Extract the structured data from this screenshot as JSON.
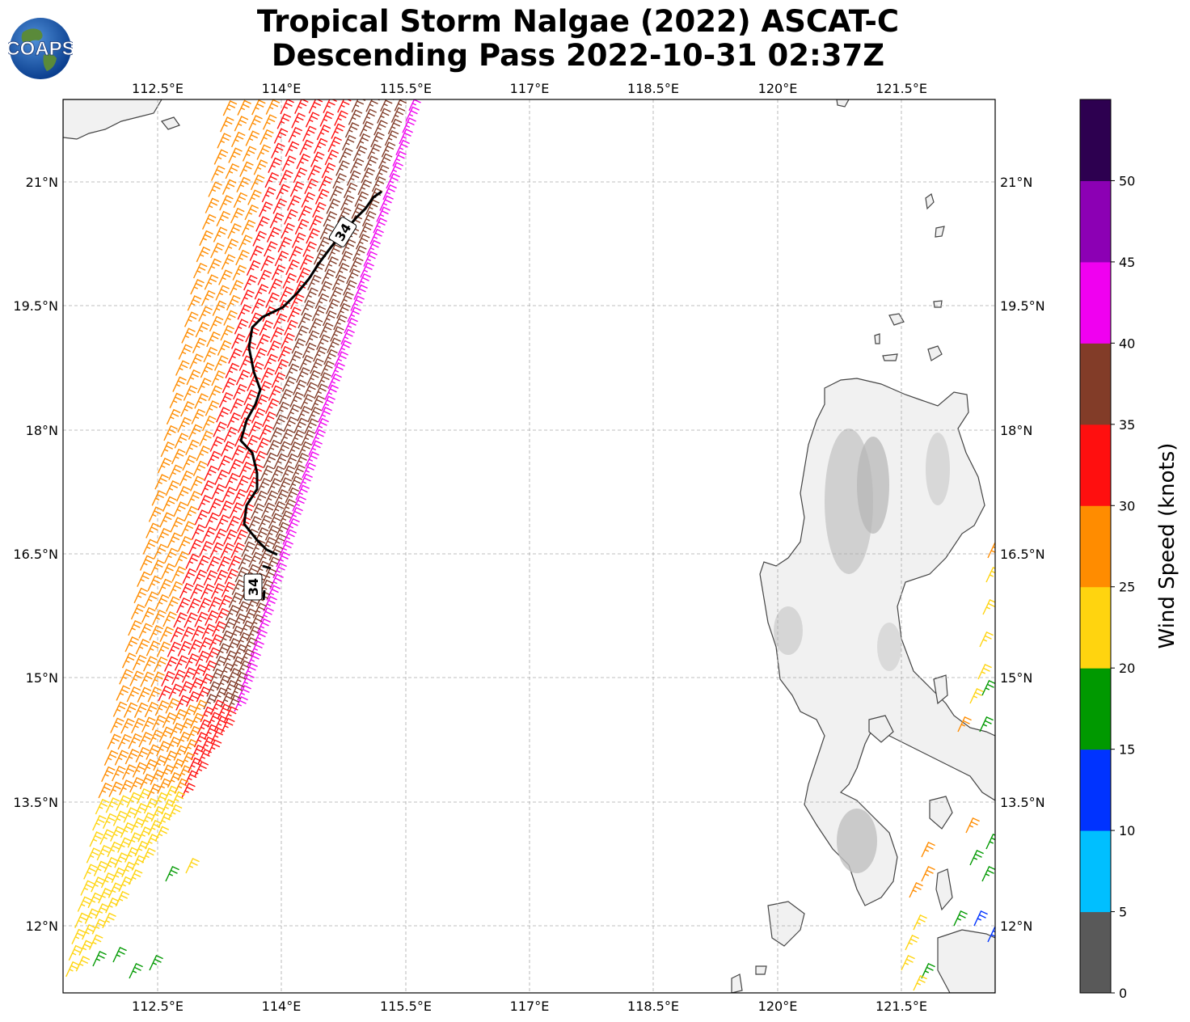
{
  "header": {
    "title_line1": "Tropical Storm Nalgae (2022) ASCAT-C",
    "title_line2": "Descending Pass 2022-10-31 02:37Z"
  },
  "logo": {
    "text": "COAPS",
    "icon": "globe-icon"
  },
  "map": {
    "lon_range": [
      111.0,
      122.3
    ],
    "lat_range": [
      11.2,
      22.0
    ],
    "lon_ticks": [
      "112.5°E",
      "114°E",
      "115.5°E",
      "117°E",
      "118.5°E",
      "120°E",
      "121.5°E"
    ],
    "lat_ticks": [
      "21°N",
      "19.5°N",
      "18°N",
      "16.5°N",
      "15°N",
      "13.5°N",
      "12°N"
    ],
    "contour_label": "34",
    "contour_label_2": "34",
    "land_color": "#f2f2f2",
    "coast_color": "#444444"
  },
  "colorbar": {
    "label": "Wind Speed (knots)",
    "ticks": [
      "0",
      "5",
      "10",
      "15",
      "20",
      "25",
      "30",
      "35",
      "40",
      "45",
      "50"
    ],
    "colors": [
      "#595959",
      "#00bfff",
      "#0033ff",
      "#009900",
      "#ffd40f",
      "#ff8c00",
      "#ff0f0f",
      "#823c28",
      "#f000f0",
      "#8c00b4",
      "#2d0050"
    ]
  }
}
